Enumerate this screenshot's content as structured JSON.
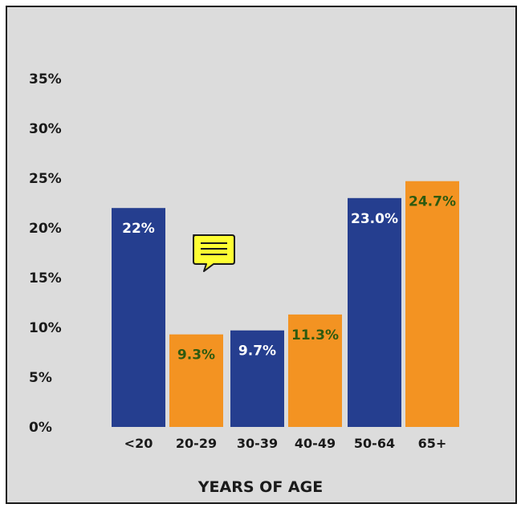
{
  "chart_data": {
    "type": "bar",
    "xlabel": "YEARS OF AGE",
    "ylabel": "",
    "ylim": [
      0,
      35
    ],
    "yticks": [
      "0%",
      "5%",
      "10%",
      "15%",
      "20%",
      "25%",
      "30%",
      "35%"
    ],
    "ytick_values": [
      0,
      5,
      10,
      15,
      20,
      25,
      30,
      35
    ],
    "categories": [
      "<20",
      "20-29",
      "30-39",
      "40-49",
      "50-64",
      "65+"
    ],
    "values": [
      22,
      9.3,
      9.7,
      11.3,
      23.0,
      24.7
    ],
    "data_labels": [
      "22%",
      "9.3%",
      "9.7%",
      "11.3%",
      "23.0%",
      "24.7%"
    ],
    "bar_colors": [
      "#253e8f",
      "#f39322",
      "#253e8f",
      "#f39322",
      "#253e8f",
      "#f39322"
    ],
    "label_colors": [
      "#ffffff",
      "#2e5a10",
      "#ffffff",
      "#2e5a10",
      "#ffffff",
      "#2e5a10"
    ],
    "grid": false,
    "legend": "none"
  },
  "annotation": {
    "icon": "comment-icon",
    "color": "#ffff33"
  }
}
